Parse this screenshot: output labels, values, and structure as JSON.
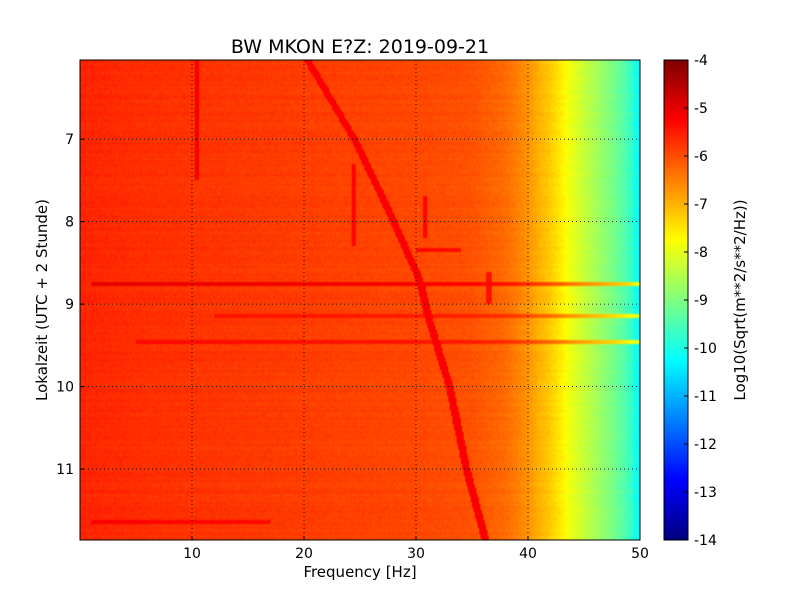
{
  "chart_data": {
    "type": "heatmap",
    "title": "BW MKON E?Z: 2019-09-21",
    "xlabel": "Frequency [Hz]",
    "ylabel": "Lokalzeit (UTC + 2 Stunde)",
    "xlim": [
      0,
      50
    ],
    "ylim": [
      11.86,
      6.04
    ],
    "y_axis_inverted": true,
    "grid": true,
    "xticks": [
      10,
      20,
      30,
      40,
      50
    ],
    "yticks": [
      7,
      8,
      9,
      10,
      11
    ],
    "colorbar": {
      "label": "Log10(Sqrt(m**2/s**2/Hz))",
      "range": [
        -14,
        -4
      ],
      "ticks": [
        -4,
        -5,
        -6,
        -7,
        -8,
        -9,
        -10,
        -11,
        -12,
        -13,
        -14
      ],
      "colormap": "jet"
    },
    "base_spectrum": {
      "frequency_hz": [
        0,
        5,
        10,
        15,
        20,
        25,
        30,
        35,
        38,
        40,
        41,
        42,
        43,
        44,
        45,
        46,
        47,
        48,
        49,
        50
      ],
      "log10_amplitude": [
        -5.6,
        -5.7,
        -5.75,
        -5.8,
        -5.85,
        -5.9,
        -5.95,
        -6.05,
        -6.3,
        -6.7,
        -7.0,
        -7.25,
        -7.6,
        -8.0,
        -8.3,
        -8.6,
        -8.9,
        -9.2,
        -9.6,
        -10.3
      ]
    },
    "features": [
      {
        "kind": "frequency_drift_line",
        "points_hz_time": [
          [
            20.3,
            6.04
          ],
          [
            24.5,
            7.0
          ],
          [
            27.5,
            7.85
          ],
          [
            30.3,
            8.7
          ],
          [
            31.2,
            9.2
          ],
          [
            33.0,
            10.0
          ],
          [
            34.5,
            11.0
          ],
          [
            36.2,
            11.86
          ]
        ],
        "log10_amplitude": -5.2
      },
      {
        "kind": "constant_frequency_line",
        "frequency_hz": 10.4,
        "time_range": [
          6.04,
          7.5
        ],
        "log10_amplitude": -5.2
      },
      {
        "kind": "constant_frequency_line",
        "frequency_hz": 24.4,
        "time_range": [
          7.3,
          8.3
        ],
        "log10_amplitude": -5.3
      },
      {
        "kind": "constant_frequency_line",
        "frequency_hz": 30.8,
        "time_range": [
          7.7,
          8.2
        ],
        "log10_amplitude": -5.3
      },
      {
        "kind": "constant_frequency_line",
        "frequency_hz": 36.5,
        "time_range": [
          8.6,
          9.0
        ],
        "log10_amplitude": -5.4
      },
      {
        "kind": "broadband_event",
        "time": 8.75,
        "frequency_range": [
          1,
          50
        ],
        "log10_amplitude": -5.0
      },
      {
        "kind": "broadband_event",
        "time": 9.45,
        "frequency_range": [
          5,
          50
        ],
        "log10_amplitude": -5.3
      },
      {
        "kind": "broadband_event",
        "time": 9.15,
        "frequency_range": [
          12,
          50
        ],
        "log10_amplitude": -5.4
      },
      {
        "kind": "broadband_event",
        "time": 8.35,
        "frequency_range": [
          30,
          34
        ],
        "log10_amplitude": -5.3
      },
      {
        "kind": "broadband_event",
        "time": 11.65,
        "frequency_range": [
          1,
          17
        ],
        "log10_amplitude": -5.2
      }
    ]
  }
}
